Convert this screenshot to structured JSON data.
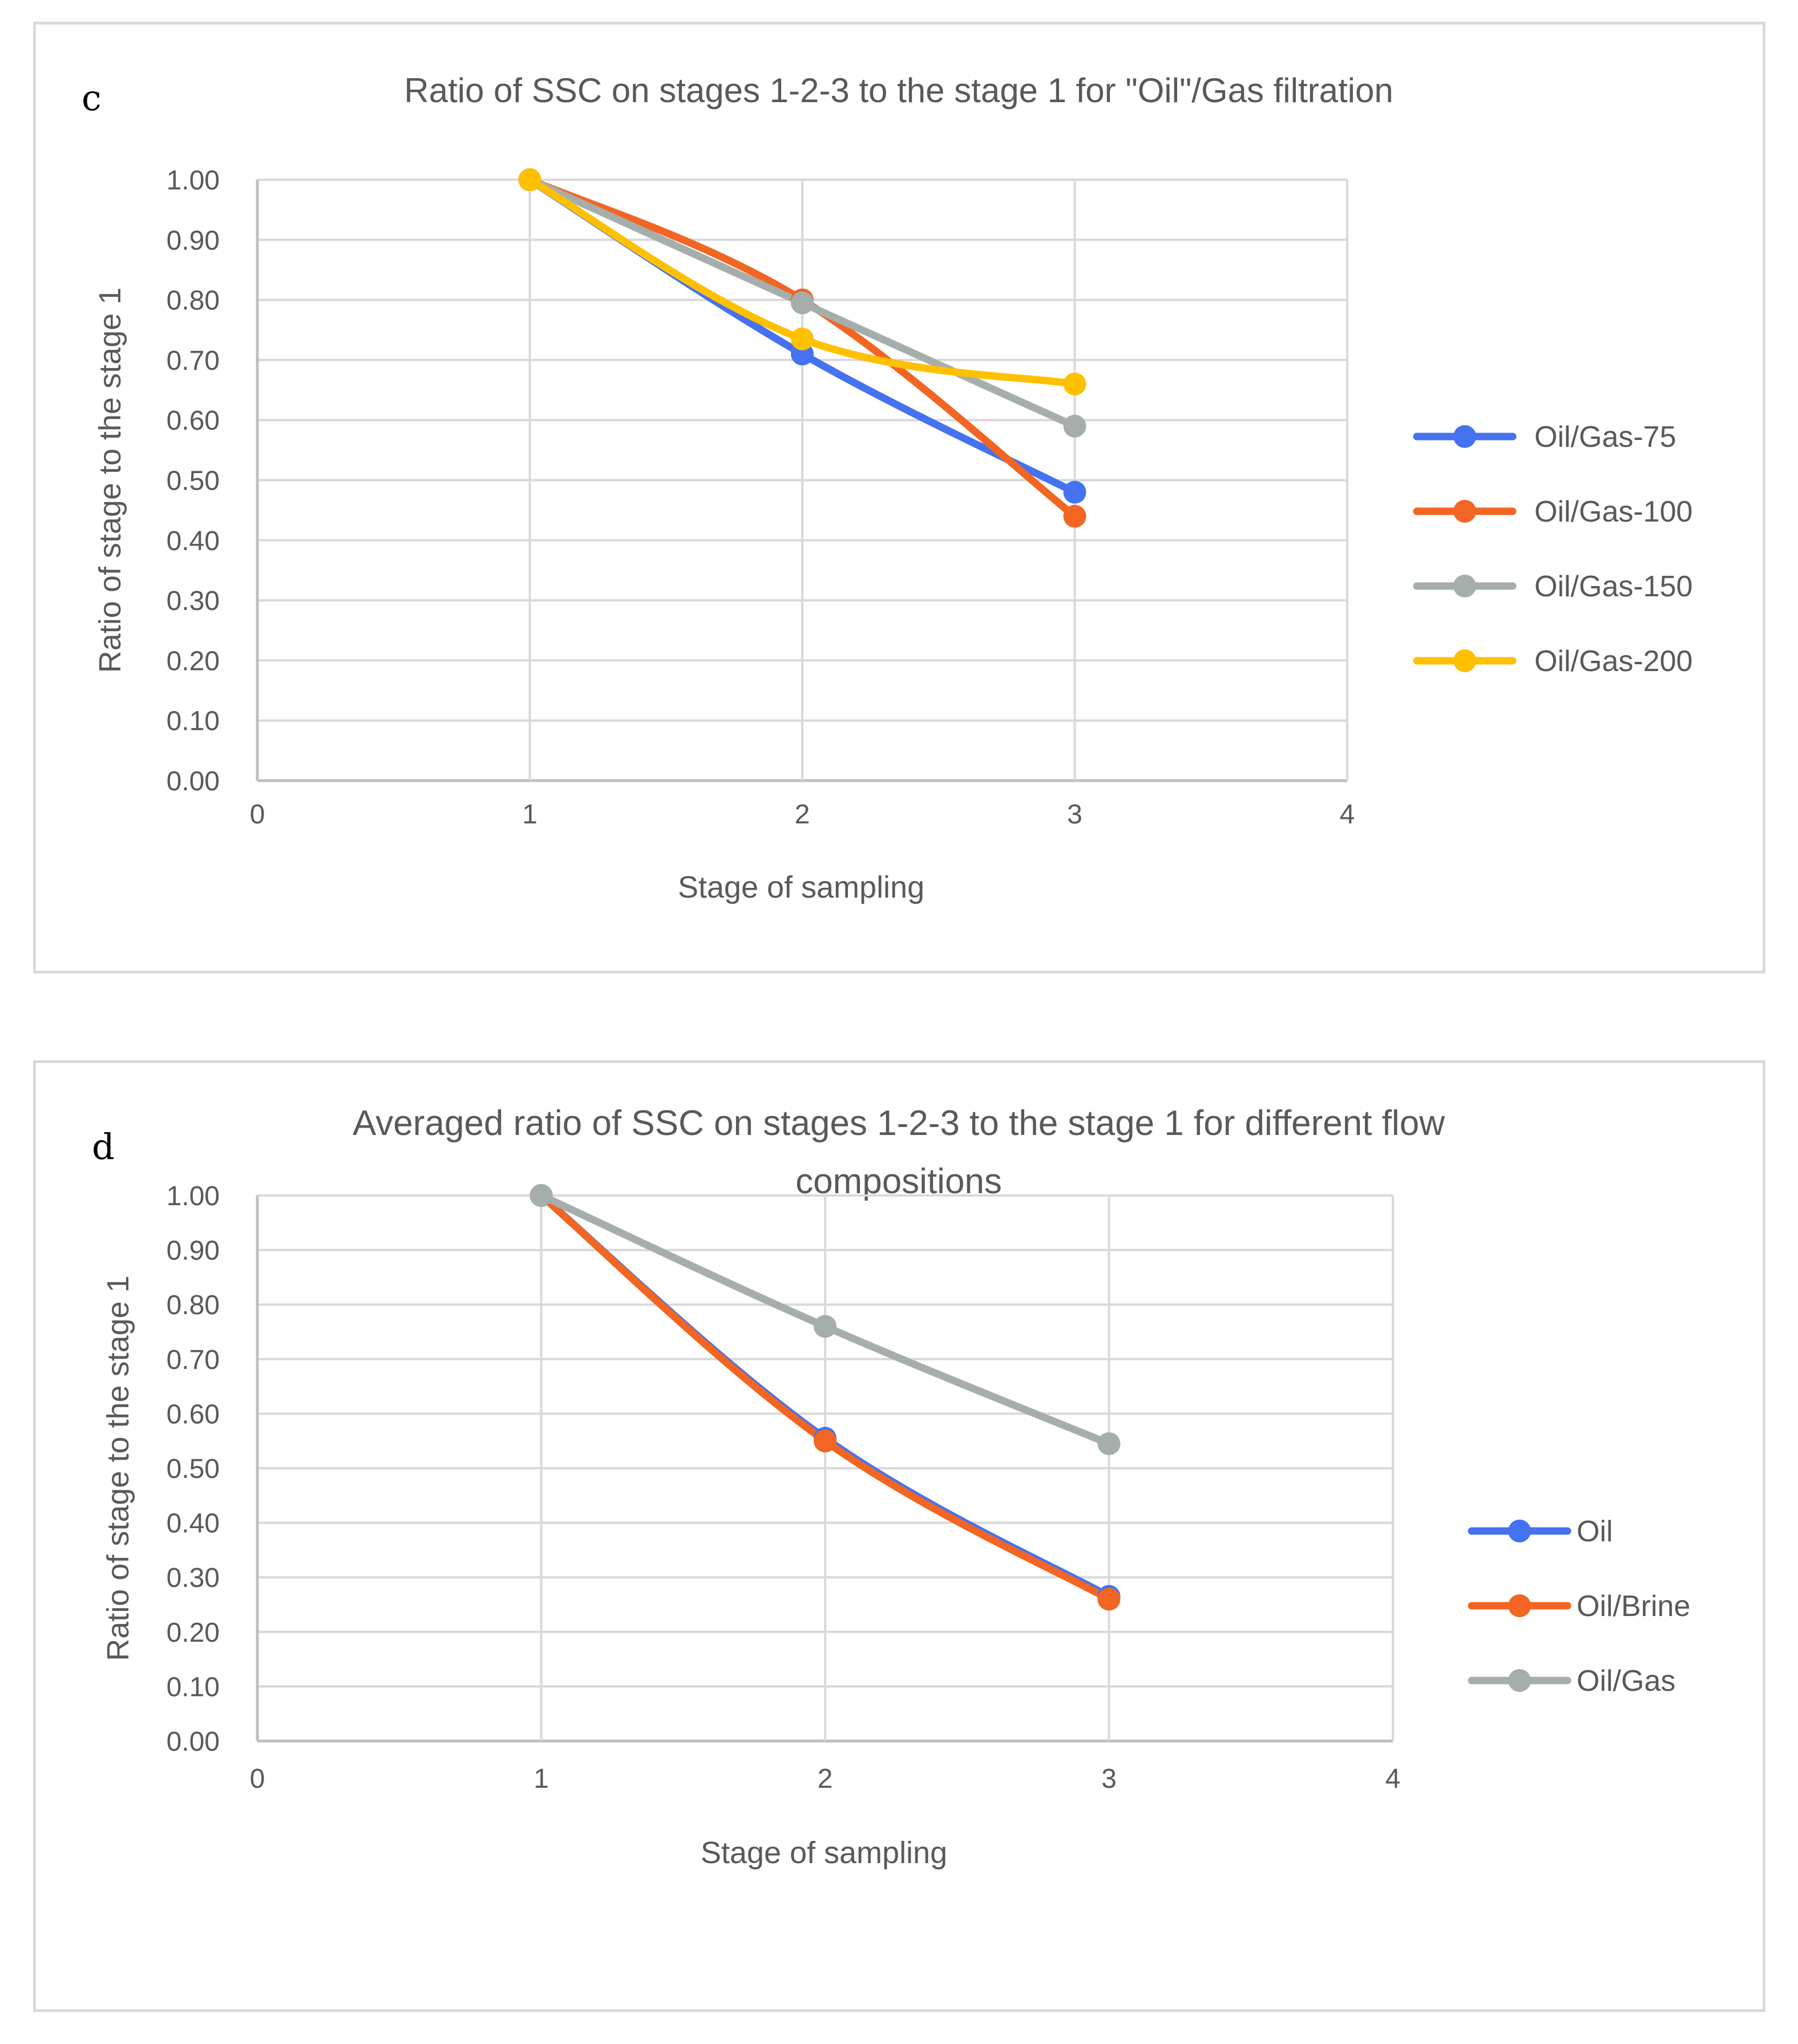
{
  "chart_data": [
    {
      "type": "line",
      "panel_label": "c",
      "title": [
        "Ratio of SSC on stages 1-2-3 to the stage 1 for \"Oil\"/Gas filtration"
      ],
      "xlabel": "Stage of sampling",
      "ylabel": "Ratio of stage to the stage 1",
      "xlim": [
        0,
        4
      ],
      "ylim": [
        0,
        1
      ],
      "xticks": [
        "0",
        "1",
        "2",
        "3",
        "4"
      ],
      "yticks": [
        "0.00",
        "0.10",
        "0.20",
        "0.30",
        "0.40",
        "0.50",
        "0.60",
        "0.70",
        "0.80",
        "0.90",
        "1.00"
      ],
      "grid": true,
      "legend": "right",
      "x": [
        1,
        2,
        3
      ],
      "series": [
        {
          "name": "Oil/Gas-75",
          "color": "#4472f0",
          "values": [
            1.0,
            0.71,
            0.48
          ]
        },
        {
          "name": "Oil/Gas-100",
          "color": "#f26522",
          "values": [
            1.0,
            0.8,
            0.44
          ]
        },
        {
          "name": "Oil/Gas-150",
          "color": "#a5aeab",
          "values": [
            1.0,
            0.795,
            0.59
          ]
        },
        {
          "name": "Oil/Gas-200",
          "color": "#ffc000",
          "values": [
            1.0,
            0.735,
            0.66
          ]
        }
      ]
    },
    {
      "type": "line",
      "panel_label": "d",
      "title": [
        "Averaged ratio of SSC on stages 1-2-3 to the stage 1 for different flow",
        "compositions"
      ],
      "xlabel": "Stage of sampling",
      "ylabel": "Ratio of stage to the stage 1",
      "xlim": [
        0,
        4
      ],
      "ylim": [
        0,
        1
      ],
      "xticks": [
        "0",
        "1",
        "2",
        "3",
        "4"
      ],
      "yticks": [
        "0.00",
        "0.10",
        "0.20",
        "0.30",
        "0.40",
        "0.50",
        "0.60",
        "0.70",
        "0.80",
        "0.90",
        "1.00"
      ],
      "grid": true,
      "legend": "right",
      "x": [
        1,
        2,
        3
      ],
      "series": [
        {
          "name": "Oil",
          "color": "#4472f0",
          "values": [
            1.0,
            0.555,
            0.265
          ]
        },
        {
          "name": "Oil/Brine",
          "color": "#f26522",
          "values": [
            1.0,
            0.55,
            0.26
          ]
        },
        {
          "name": "Oil/Gas",
          "color": "#a5aeab",
          "values": [
            1.0,
            0.76,
            0.545
          ]
        }
      ]
    }
  ]
}
